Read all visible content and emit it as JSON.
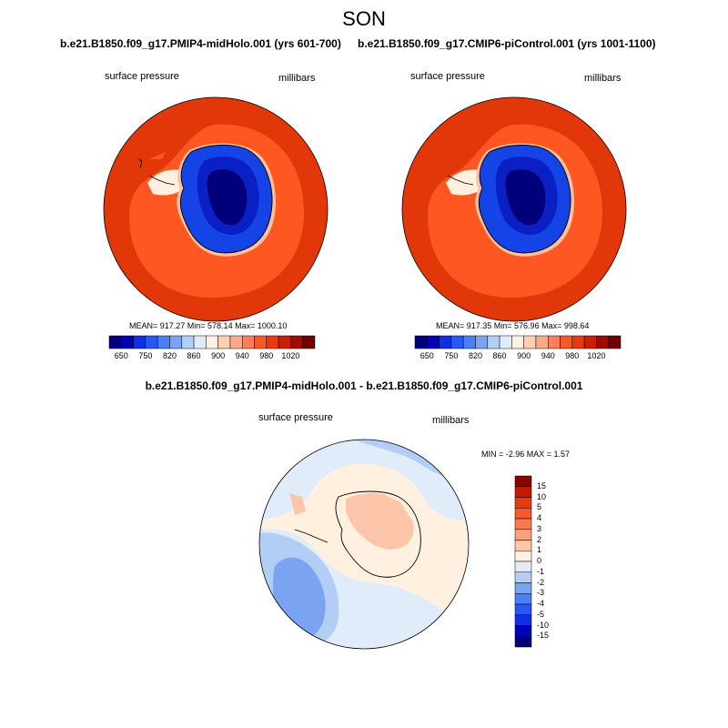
{
  "title": "SON",
  "panels": [
    {
      "title": "b.e21.B1850.f09_g17.PMIP4-midHolo.001 (yrs 601-700)",
      "variable": "surface pressure",
      "units": "millibars",
      "stats": "MEAN= 917.27  Min= 578.14  Max= 1000.10"
    },
    {
      "title": "b.e21.B1850.f09_g17.CMIP6-piControl.001 (yrs 1001-1100)",
      "variable": "surface pressure",
      "units": "millibars",
      "stats": "MEAN= 917.35  Min= 576.96  Max= 998.64"
    }
  ],
  "colorbar_abs": {
    "tick_labels": [
      "650",
      "750",
      "820",
      "860",
      "900",
      "940",
      "980",
      "1020"
    ],
    "colors": [
      "#00007a",
      "#0000b8",
      "#0f2ee6",
      "#2857f5",
      "#4a7ff5",
      "#7aa3f2",
      "#b3cef5",
      "#e1ecfa",
      "#fff2e3",
      "#fdd0b3",
      "#fba989",
      "#f98058",
      "#f55a2c",
      "#e83a10",
      "#c92000",
      "#a10a00",
      "#700000"
    ]
  },
  "difference_panel": {
    "title": "b.e21.B1850.f09_g17.PMIP4-midHolo.001 - b.e21.B1850.f09_g17.CMIP6-piControl.001",
    "variable": "surface pressure",
    "units": "millibars",
    "stats": "MIN =  -2.96 MAX =   1.57"
  },
  "colorbar_diff": {
    "labels_top_to_bottom": [
      "15",
      "10",
      "5",
      "4",
      "3",
      "2",
      "1",
      "0",
      "-1",
      "-2",
      "-3",
      "-4",
      "-5",
      "-10",
      "-15"
    ],
    "colors_top_to_bottom": [
      "#8c0000",
      "#c41800",
      "#e63a10",
      "#f55a2c",
      "#f97a50",
      "#fba080",
      "#fdc6aa",
      "#fff0e0",
      "#e1ecfa",
      "#b3cef5",
      "#7aa3f2",
      "#4a7ff5",
      "#2857f5",
      "#0f2ee6",
      "#0000b8",
      "#00007a"
    ]
  }
}
